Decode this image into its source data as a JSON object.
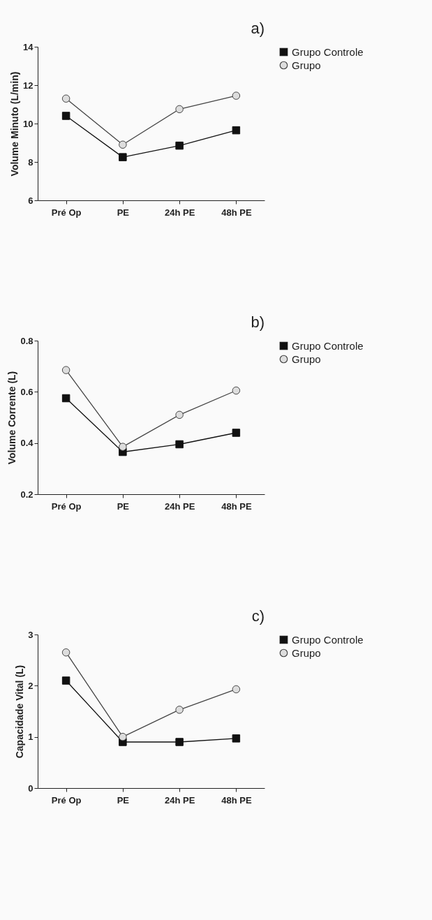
{
  "chart_data": [
    {
      "type": "line",
      "title": "a)",
      "ylabel": "Volume Minuto (L/min)",
      "categories": [
        "Pré Op",
        "PE",
        "24h PE",
        "48h PE"
      ],
      "ylim": [
        6,
        14
      ],
      "yticks": [
        6,
        8,
        10,
        12,
        14
      ],
      "legend": "top right",
      "series": [
        {
          "name": "Grupo Controle",
          "color": "#111111",
          "marker": "square",
          "values": [
            10.4,
            8.25,
            8.85,
            9.65
          ]
        },
        {
          "name": "Grupo",
          "color": "#444444",
          "marker": "circle",
          "values": [
            11.3,
            8.9,
            10.75,
            11.45
          ]
        }
      ]
    },
    {
      "type": "line",
      "title": "b)",
      "ylabel": "Volume Corrente (L)",
      "categories": [
        "Pré Op",
        "PE",
        "24h PE",
        "48h PE"
      ],
      "ylim": [
        0.2,
        0.8
      ],
      "yticks": [
        0.2,
        0.4,
        0.6,
        0.8
      ],
      "legend": "top right",
      "series": [
        {
          "name": "Grupo Controle",
          "color": "#111111",
          "marker": "square",
          "values": [
            0.575,
            0.365,
            0.395,
            0.44
          ]
        },
        {
          "name": "Grupo",
          "color": "#444444",
          "marker": "circle",
          "values": [
            0.685,
            0.385,
            0.51,
            0.605
          ]
        }
      ]
    },
    {
      "type": "line",
      "title": "c)",
      "ylabel": "Capacidade Vital (L)",
      "categories": [
        "Pré Op",
        "PE",
        "24h PE",
        "48h PE"
      ],
      "ylim": [
        0,
        3
      ],
      "yticks": [
        0,
        1,
        2,
        3
      ],
      "legend": "top right",
      "series": [
        {
          "name": "Grupo Controle",
          "color": "#111111",
          "marker": "square",
          "values": [
            2.1,
            0.9,
            0.9,
            0.97
          ]
        },
        {
          "name": "Grupo",
          "color": "#444444",
          "marker": "circle",
          "values": [
            2.65,
            1.0,
            1.53,
            1.93
          ]
        }
      ]
    }
  ]
}
